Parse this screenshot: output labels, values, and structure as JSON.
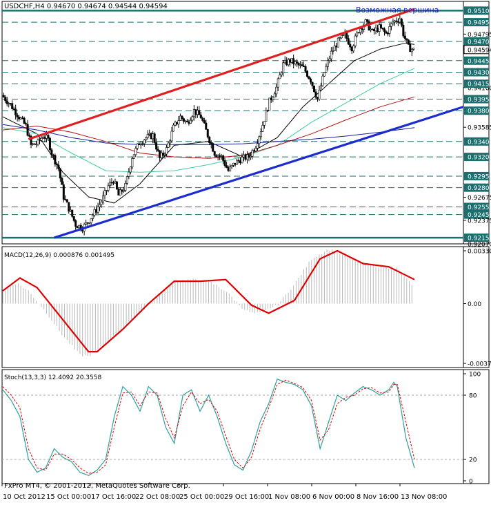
{
  "main": {
    "header": "USDCHF,H4  0.94670 0.94674 0.94544 0.94594",
    "annotation": "Возможная вершина",
    "price_labels": [
      {
        "value": "0.95100",
        "box": true
      },
      {
        "value": "0.94950",
        "box": true
      },
      {
        "value": "0.94795",
        "box": false
      },
      {
        "value": "0.94700",
        "box": true
      },
      {
        "value": "0.94594",
        "box": true,
        "current": true
      },
      {
        "value": "0.94450",
        "box": true
      },
      {
        "value": "0.94300",
        "box": true
      },
      {
        "value": "0.94100",
        "box": false
      },
      {
        "value": "0.94150",
        "box": true
      },
      {
        "value": "0.93950",
        "box": true
      },
      {
        "value": "0.93800",
        "box": true
      },
      {
        "value": "0.93585",
        "box": false
      },
      {
        "value": "0.93400",
        "box": true
      },
      {
        "value": "0.93200",
        "box": true
      },
      {
        "value": "0.92950",
        "box": true
      },
      {
        "value": "0.92800",
        "box": true
      },
      {
        "value": "0.92675",
        "box": false
      },
      {
        "value": "0.92550",
        "box": true
      },
      {
        "value": "0.92450",
        "box": true
      },
      {
        "value": "0.92375",
        "box": false
      },
      {
        "value": "0.92150",
        "box": true
      },
      {
        "value": "0.92070",
        "box": false
      }
    ],
    "dashed_levels": [
      0.9495,
      0.947,
      0.9445,
      0.943,
      0.9415,
      0.9395,
      0.938,
      0.934,
      0.932,
      0.9295,
      0.928,
      0.9255,
      0.9245
    ],
    "solid_levels": [
      0.951,
      0.9215
    ]
  },
  "macd": {
    "label": "MACD(12,26,9) 0.000876 0.001495",
    "ticks": [
      "0.00330",
      "0.00",
      "-0.00373"
    ]
  },
  "stoch": {
    "label": "Stoch(13,3,3) 12.4092 20.3558",
    "ticks": [
      "100",
      "80",
      "20",
      "0"
    ]
  },
  "footer": {
    "copyright": "FxPro MT4, © 2001-2012, MetaQuotes Software Corp."
  },
  "x_axis": [
    "10 Oct 2012",
    "15 Oct 00:00",
    "17 Oct 16:00",
    "22 Oct 08:00",
    "25 Oct 00:00",
    "29 Oct 16:00",
    "1 Nov 08:00",
    "6 Nov 00:00",
    "8 Nov 16:00",
    "13 Nov 08:00"
  ],
  "colors": {
    "background": "#ffffff",
    "candles": "#000000",
    "label_box": "#1b6f6f",
    "levels": "#1b6f6f",
    "upper_trendline": "#e02020",
    "lower_trendline": "#1d2ccc",
    "annotation": "#1a1ad0",
    "ma_fast": "#000000",
    "ma_mid": "#3ccf9a",
    "ma_slow": "#b01010",
    "ma_long": "#1a1aa0",
    "macd_hist": "#b8b8b8",
    "macd_signal": "#e00000",
    "stoch_main": "#2aa0a0",
    "stoch_signal": "#e00000"
  },
  "chart_data": [
    {
      "type": "candlestick",
      "title": "USDCHF,H4",
      "ylim": [
        0.9207,
        0.9522
      ],
      "close_path": [
        [
          0,
          0.94
        ],
        [
          5,
          0.9388
        ],
        [
          10,
          0.9372
        ],
        [
          14,
          0.936
        ],
        [
          17,
          0.9335
        ],
        [
          21,
          0.9338
        ],
        [
          24,
          0.9348
        ],
        [
          27,
          0.9342
        ],
        [
          29,
          0.9325
        ],
        [
          33,
          0.9305
        ],
        [
          36,
          0.9268
        ],
        [
          40,
          0.9248
        ],
        [
          43,
          0.9232
        ],
        [
          47,
          0.9228
        ],
        [
          50,
          0.9235
        ],
        [
          54,
          0.9248
        ],
        [
          58,
          0.9262
        ],
        [
          62,
          0.9282
        ],
        [
          65,
          0.929
        ],
        [
          68,
          0.927
        ],
        [
          72,
          0.9282
        ],
        [
          76,
          0.932
        ],
        [
          80,
          0.9338
        ],
        [
          84,
          0.9345
        ],
        [
          88,
          0.9348
        ],
        [
          92,
          0.9318
        ],
        [
          96,
          0.933
        ],
        [
          100,
          0.9358
        ],
        [
          104,
          0.9372
        ],
        [
          108,
          0.9364
        ],
        [
          112,
          0.938
        ],
        [
          116,
          0.9372
        ],
        [
          120,
          0.9348
        ],
        [
          124,
          0.9325
        ],
        [
          128,
          0.932
        ],
        [
          132,
          0.9302
        ],
        [
          136,
          0.9312
        ],
        [
          140,
          0.9318
        ],
        [
          144,
          0.932
        ],
        [
          148,
          0.9335
        ],
        [
          152,
          0.9362
        ],
        [
          156,
          0.9392
        ],
        [
          160,
          0.941
        ],
        [
          164,
          0.944
        ],
        [
          168,
          0.9445
        ],
        [
          172,
          0.944
        ],
        [
          176,
          0.9435
        ],
        [
          180,
          0.942
        ],
        [
          184,
          0.9395
        ],
        [
          188,
          0.943
        ],
        [
          192,
          0.9455
        ],
        [
          196,
          0.947
        ],
        [
          200,
          0.9478
        ],
        [
          204,
          0.9462
        ],
        [
          208,
          0.9485
        ],
        [
          212,
          0.9495
        ],
        [
          216,
          0.9482
        ],
        [
          220,
          0.9488
        ],
        [
          224,
          0.948
        ],
        [
          228,
          0.9495
        ],
        [
          232,
          0.95
        ],
        [
          234,
          0.948
        ],
        [
          237,
          0.9462
        ],
        [
          240,
          0.9459
        ]
      ],
      "trendlines": [
        {
          "name": "upper",
          "from": [
            15,
            0.9343
          ],
          "to": [
            240,
            0.9512
          ]
        },
        {
          "name": "lower",
          "from": [
            30,
            0.9215
          ],
          "to": [
            270,
            0.9385
          ]
        }
      ],
      "moving_averages": [
        {
          "name": "ma_fast",
          "points": [
            [
              0,
              0.9372
            ],
            [
              20,
              0.935
            ],
            [
              35,
              0.93
            ],
            [
              50,
              0.9268
            ],
            [
              65,
              0.926
            ],
            [
              80,
              0.9285
            ],
            [
              100,
              0.9335
            ],
            [
              120,
              0.934
            ],
            [
              140,
              0.932
            ],
            [
              160,
              0.9345
            ],
            [
              175,
              0.9385
            ],
            [
              190,
              0.9415
            ],
            [
              205,
              0.9445
            ],
            [
              220,
              0.946
            ],
            [
              235,
              0.9468
            ],
            [
              240,
              0.9466
            ]
          ]
        },
        {
          "name": "ma_mid",
          "points": [
            [
              0,
              0.9358
            ],
            [
              20,
              0.935
            ],
            [
              40,
              0.9325
            ],
            [
              60,
              0.9302
            ],
            [
              80,
              0.93
            ],
            [
              100,
              0.9302
            ],
            [
              120,
              0.931
            ],
            [
              140,
              0.932
            ],
            [
              160,
              0.9335
            ],
            [
              180,
              0.9365
            ],
            [
              200,
              0.939
            ],
            [
              220,
              0.9415
            ],
            [
              240,
              0.9435
            ]
          ]
        },
        {
          "name": "ma_slow",
          "points": [
            [
              0,
              0.9355
            ],
            [
              20,
              0.936
            ],
            [
              40,
              0.9352
            ],
            [
              60,
              0.934
            ],
            [
              80,
              0.9325
            ],
            [
              100,
              0.932
            ],
            [
              120,
              0.9318
            ],
            [
              140,
              0.9322
            ],
            [
              160,
              0.9335
            ],
            [
              180,
              0.935
            ],
            [
              200,
              0.9368
            ],
            [
              220,
              0.9385
            ],
            [
              240,
              0.9398
            ]
          ]
        },
        {
          "name": "ma_long",
          "points": [
            [
              0,
              0.9362
            ],
            [
              20,
              0.9355
            ],
            [
              40,
              0.9345
            ],
            [
              60,
              0.9338
            ],
            [
              80,
              0.9336
            ],
            [
              100,
              0.9336
            ],
            [
              120,
              0.9336
            ],
            [
              140,
              0.9337
            ],
            [
              160,
              0.934
            ],
            [
              180,
              0.9343
            ],
            [
              200,
              0.9347
            ],
            [
              220,
              0.9352
            ],
            [
              240,
              0.9358
            ]
          ]
        }
      ]
    },
    {
      "type": "bar",
      "title": "MACD(12,26,9)",
      "ylim": [
        -0.00373,
        0.0033
      ],
      "histogram": [
        [
          0,
          0.0008
        ],
        [
          8,
          0.0013
        ],
        [
          15,
          0.0008
        ],
        [
          25,
          -0.0005
        ],
        [
          35,
          -0.002
        ],
        [
          45,
          -0.0032
        ],
        [
          50,
          -0.0033
        ],
        [
          60,
          -0.0025
        ],
        [
          70,
          -0.0015
        ],
        [
          80,
          -0.0006
        ],
        [
          90,
          0.0004
        ],
        [
          100,
          0.0014
        ],
        [
          110,
          0.0015
        ],
        [
          120,
          0.0014
        ],
        [
          130,
          0.0008
        ],
        [
          140,
          -0.0003
        ],
        [
          145,
          -0.0006
        ],
        [
          150,
          -0.0006
        ],
        [
          160,
          -0.0001
        ],
        [
          170,
          0.0012
        ],
        [
          180,
          0.0028
        ],
        [
          190,
          0.0034
        ],
        [
          200,
          0.003
        ],
        [
          210,
          0.0025
        ],
        [
          220,
          0.0023
        ],
        [
          230,
          0.0022
        ],
        [
          240,
          0.001
        ]
      ],
      "signal": [
        [
          0,
          0.0008
        ],
        [
          10,
          0.0016
        ],
        [
          20,
          0.001
        ],
        [
          35,
          -0.001
        ],
        [
          50,
          -0.003
        ],
        [
          55,
          -0.003
        ],
        [
          70,
          -0.0016
        ],
        [
          85,
          0.0
        ],
        [
          100,
          0.0014
        ],
        [
          115,
          0.0014
        ],
        [
          130,
          0.0015
        ],
        [
          145,
          -0.0001
        ],
        [
          155,
          -0.0006
        ],
        [
          170,
          0.0002
        ],
        [
          185,
          0.0028
        ],
        [
          195,
          0.0033
        ],
        [
          210,
          0.0025
        ],
        [
          225,
          0.0023
        ],
        [
          240,
          0.0015
        ]
      ]
    },
    {
      "type": "line",
      "title": "Stoch(13,3,3)",
      "ylim": [
        0,
        100
      ],
      "main": [
        [
          0,
          85
        ],
        [
          5,
          75
        ],
        [
          10,
          60
        ],
        [
          15,
          20
        ],
        [
          20,
          8
        ],
        [
          25,
          12
        ],
        [
          30,
          30
        ],
        [
          35,
          22
        ],
        [
          40,
          18
        ],
        [
          45,
          8
        ],
        [
          50,
          5
        ],
        [
          55,
          10
        ],
        [
          60,
          20
        ],
        [
          65,
          60
        ],
        [
          70,
          88
        ],
        [
          75,
          80
        ],
        [
          80,
          65
        ],
        [
          85,
          88
        ],
        [
          90,
          80
        ],
        [
          95,
          50
        ],
        [
          100,
          35
        ],
        [
          105,
          80
        ],
        [
          110,
          85
        ],
        [
          115,
          65
        ],
        [
          120,
          80
        ],
        [
          125,
          60
        ],
        [
          130,
          35
        ],
        [
          135,
          15
        ],
        [
          140,
          10
        ],
        [
          145,
          28
        ],
        [
          150,
          55
        ],
        [
          155,
          72
        ],
        [
          160,
          95
        ],
        [
          165,
          92
        ],
        [
          170,
          90
        ],
        [
          175,
          85
        ],
        [
          180,
          70
        ],
        [
          185,
          30
        ],
        [
          190,
          55
        ],
        [
          195,
          80
        ],
        [
          200,
          75
        ],
        [
          205,
          82
        ],
        [
          210,
          88
        ],
        [
          215,
          85
        ],
        [
          220,
          80
        ],
        [
          225,
          85
        ],
        [
          228,
          92
        ],
        [
          230,
          88
        ],
        [
          235,
          40
        ],
        [
          240,
          12
        ]
      ],
      "signal": [
        [
          0,
          88
        ],
        [
          5,
          80
        ],
        [
          10,
          68
        ],
        [
          15,
          30
        ],
        [
          20,
          12
        ],
        [
          25,
          10
        ],
        [
          30,
          25
        ],
        [
          35,
          25
        ],
        [
          40,
          20
        ],
        [
          45,
          12
        ],
        [
          50,
          7
        ],
        [
          55,
          8
        ],
        [
          60,
          15
        ],
        [
          65,
          50
        ],
        [
          70,
          82
        ],
        [
          75,
          83
        ],
        [
          80,
          70
        ],
        [
          85,
          83
        ],
        [
          90,
          82
        ],
        [
          95,
          58
        ],
        [
          100,
          40
        ],
        [
          105,
          70
        ],
        [
          110,
          83
        ],
        [
          115,
          72
        ],
        [
          120,
          76
        ],
        [
          125,
          65
        ],
        [
          130,
          42
        ],
        [
          135,
          20
        ],
        [
          140,
          12
        ],
        [
          145,
          22
        ],
        [
          150,
          48
        ],
        [
          155,
          68
        ],
        [
          160,
          90
        ],
        [
          165,
          94
        ],
        [
          170,
          91
        ],
        [
          175,
          87
        ],
        [
          180,
          75
        ],
        [
          185,
          38
        ],
        [
          190,
          48
        ],
        [
          195,
          72
        ],
        [
          200,
          78
        ],
        [
          205,
          80
        ],
        [
          210,
          86
        ],
        [
          215,
          87
        ],
        [
          220,
          82
        ],
        [
          225,
          83
        ],
        [
          228,
          90
        ],
        [
          230,
          90
        ],
        [
          235,
          55
        ],
        [
          240,
          20
        ]
      ]
    }
  ]
}
